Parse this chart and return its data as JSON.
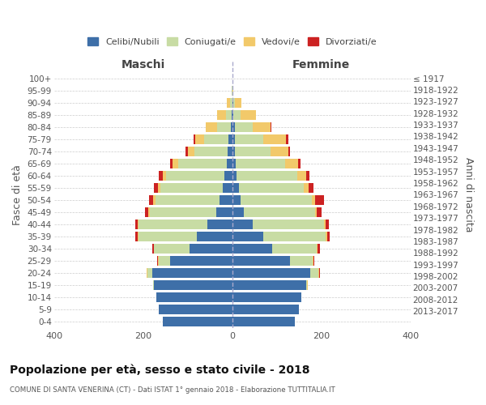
{
  "age_groups": [
    "0-4",
    "5-9",
    "10-14",
    "15-19",
    "20-24",
    "25-29",
    "30-34",
    "35-39",
    "40-44",
    "45-49",
    "50-54",
    "55-59",
    "60-64",
    "65-69",
    "70-74",
    "75-79",
    "80-84",
    "85-89",
    "90-94",
    "95-99",
    "100+"
  ],
  "birth_years": [
    "2013-2017",
    "2008-2012",
    "2003-2007",
    "1998-2002",
    "1993-1997",
    "1988-1992",
    "1983-1987",
    "1978-1982",
    "1973-1977",
    "1968-1972",
    "1963-1967",
    "1958-1962",
    "1953-1957",
    "1948-1952",
    "1943-1947",
    "1938-1942",
    "1933-1937",
    "1928-1932",
    "1923-1927",
    "1918-1922",
    "≤ 1917"
  ],
  "colors": {
    "celibi": "#3e6fa8",
    "coniugati": "#c8dca4",
    "vedovi": "#f2c96a",
    "divorziati": "#cc2222"
  },
  "maschi": {
    "celibi": [
      155,
      165,
      170,
      175,
      180,
      140,
      95,
      80,
      55,
      35,
      28,
      22,
      18,
      12,
      10,
      8,
      4,
      2,
      0,
      0,
      0
    ],
    "coniugati": [
      0,
      0,
      0,
      2,
      10,
      25,
      80,
      130,
      155,
      150,
      145,
      140,
      130,
      110,
      75,
      55,
      30,
      12,
      5,
      1,
      0
    ],
    "vedovi": [
      0,
      0,
      0,
      0,
      2,
      2,
      1,
      2,
      2,
      3,
      4,
      4,
      8,
      12,
      15,
      20,
      25,
      20,
      8,
      1,
      0
    ],
    "divorziati": [
      0,
      0,
      0,
      0,
      0,
      2,
      3,
      5,
      5,
      8,
      10,
      10,
      8,
      5,
      5,
      3,
      1,
      0,
      0,
      0,
      0
    ]
  },
  "femmine": {
    "celibi": [
      140,
      150,
      155,
      165,
      175,
      130,
      90,
      70,
      45,
      25,
      18,
      15,
      10,
      8,
      5,
      5,
      5,
      3,
      2,
      0,
      0
    ],
    "coniugati": [
      0,
      0,
      0,
      3,
      18,
      50,
      100,
      140,
      160,
      160,
      160,
      145,
      135,
      110,
      80,
      65,
      40,
      15,
      3,
      0,
      0
    ],
    "vedovi": [
      0,
      0,
      0,
      1,
      2,
      2,
      2,
      3,
      4,
      5,
      8,
      12,
      20,
      30,
      40,
      50,
      40,
      35,
      15,
      2,
      1
    ],
    "divorziati": [
      0,
      0,
      0,
      0,
      1,
      2,
      4,
      5,
      8,
      10,
      20,
      10,
      8,
      5,
      5,
      5,
      2,
      0,
      0,
      0,
      0
    ]
  },
  "title": "Popolazione per età, sesso e stato civile - 2018",
  "subtitle": "COMUNE DI SANTA VENERINA (CT) - Dati ISTAT 1° gennaio 2018 - Elaborazione TUTTITALIA.IT",
  "ylabel_left": "Fasce di età",
  "ylabel_right": "Anni di nascita",
  "xlim": 400,
  "legend_labels": [
    "Celibi/Nubili",
    "Coniugati/e",
    "Vedovi/e",
    "Divorziati/e"
  ],
  "maschi_label": "Maschi",
  "femmine_label": "Femmine",
  "bg_color": "#ffffff",
  "grid_color": "#cccccc"
}
